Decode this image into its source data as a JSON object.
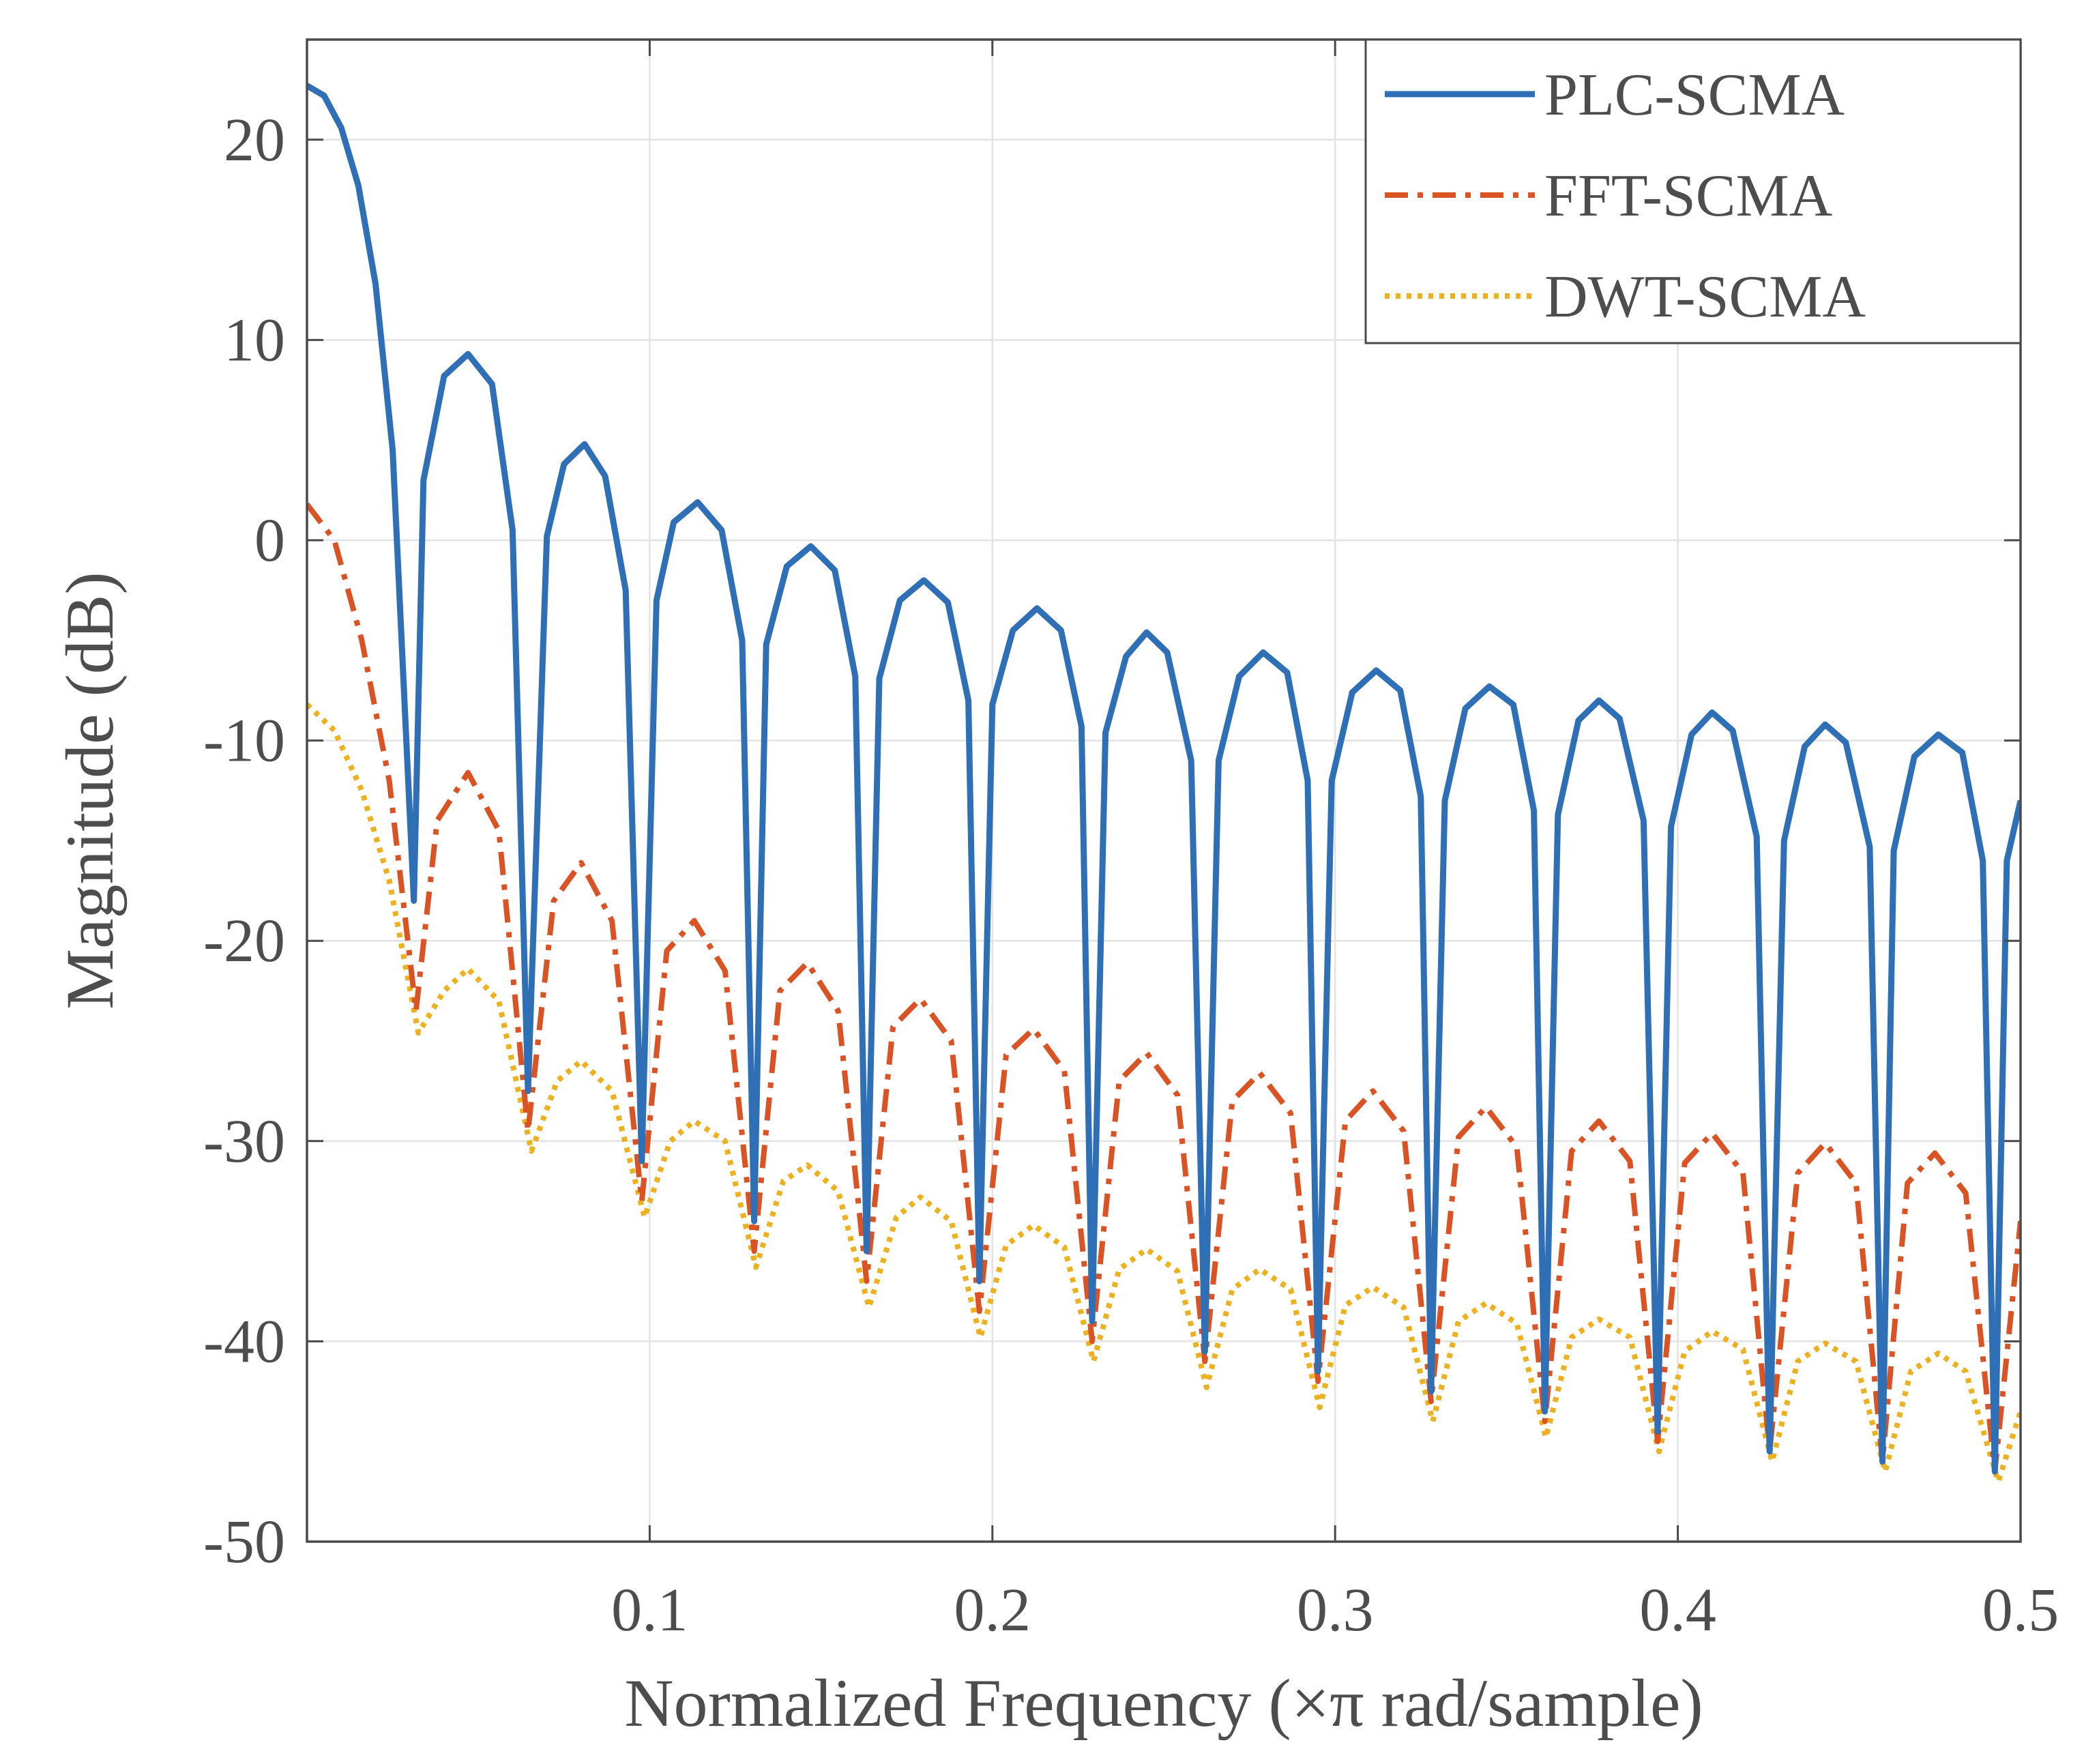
{
  "chart_data": {
    "type": "line",
    "title": "",
    "xlabel": "Normalized Frequency (×π rad/sample)",
    "ylabel": "Magnitude (dB)",
    "xlim": [
      0.0,
      0.5
    ],
    "ylim": [
      -50,
      25
    ],
    "xticks": [
      0.1,
      0.2,
      0.3,
      0.4,
      0.5
    ],
    "xtick_labels": [
      "0.1",
      "0.2",
      "0.3",
      "0.4",
      "0.5"
    ],
    "yticks": [
      -50,
      -40,
      -30,
      -20,
      -10,
      0,
      10,
      20
    ],
    "ytick_labels": [
      "-50",
      "-40",
      "-30",
      "-20",
      "-10",
      "0",
      "10",
      "20"
    ],
    "grid": true,
    "legend_position": "top-right",
    "series": [
      {
        "name": "PLC-SCMA",
        "color": "#2e6fb5",
        "style": "solid",
        "x": [
          0.0,
          0.005,
          0.01,
          0.015,
          0.02,
          0.025,
          0.0312,
          0.034,
          0.04,
          0.047,
          0.054,
          0.06,
          0.0645,
          0.07,
          0.075,
          0.081,
          0.087,
          0.093,
          0.0977,
          0.102,
          0.107,
          0.114,
          0.121,
          0.127,
          0.1305,
          0.134,
          0.14,
          0.147,
          0.154,
          0.16,
          0.1633,
          0.167,
          0.173,
          0.18,
          0.187,
          0.193,
          0.1962,
          0.2,
          0.206,
          0.213,
          0.22,
          0.226,
          0.2291,
          0.233,
          0.239,
          0.245,
          0.251,
          0.258,
          0.262,
          0.266,
          0.272,
          0.279,
          0.286,
          0.292,
          0.295,
          0.299,
          0.305,
          0.312,
          0.319,
          0.325,
          0.328,
          0.332,
          0.338,
          0.345,
          0.352,
          0.358,
          0.3612,
          0.365,
          0.371,
          0.377,
          0.383,
          0.39,
          0.3941,
          0.398,
          0.404,
          0.41,
          0.416,
          0.423,
          0.4268,
          0.431,
          0.437,
          0.443,
          0.449,
          0.456,
          0.4597,
          0.463,
          0.469,
          0.476,
          0.483,
          0.489,
          0.4925,
          0.496,
          0.5
        ],
        "y": [
          22.7,
          22.2,
          20.6,
          17.7,
          12.8,
          4.5,
          -18.0,
          3.0,
          8.2,
          9.3,
          7.8,
          0.5,
          -27.5,
          0.2,
          3.8,
          4.8,
          3.2,
          -2.5,
          -31.0,
          -3.0,
          0.9,
          1.9,
          0.5,
          -5.0,
          -34.0,
          -5.2,
          -1.3,
          -0.3,
          -1.5,
          -6.8,
          -35.5,
          -6.9,
          -3.0,
          -2.0,
          -3.1,
          -8.0,
          -37.0,
          -8.2,
          -4.5,
          -3.4,
          -4.5,
          -9.3,
          -39.0,
          -9.6,
          -5.8,
          -4.6,
          -5.6,
          -11.0,
          -40.5,
          -11.0,
          -6.8,
          -5.6,
          -6.6,
          -12.0,
          -41.5,
          -12.0,
          -7.6,
          -6.5,
          -7.5,
          -12.8,
          -42.5,
          -13.0,
          -8.4,
          -7.3,
          -8.2,
          -13.5,
          -43.5,
          -13.7,
          -9.0,
          -8.0,
          -8.9,
          -14.0,
          -44.5,
          -14.3,
          -9.7,
          -8.6,
          -9.5,
          -14.8,
          -45.5,
          -15.0,
          -10.3,
          -9.2,
          -10.1,
          -15.3,
          -46.0,
          -15.5,
          -10.8,
          -9.7,
          -10.6,
          -16.0,
          -46.5,
          -16.0,
          -13.0
        ]
      },
      {
        "name": "FFT-SCMA",
        "color": "#d95325",
        "style": "dash-dot",
        "x": [
          0.0,
          0.008,
          0.016,
          0.024,
          0.0318,
          0.038,
          0.047,
          0.056,
          0.0645,
          0.072,
          0.08,
          0.089,
          0.0977,
          0.105,
          0.113,
          0.122,
          0.1305,
          0.138,
          0.146,
          0.155,
          0.1633,
          0.171,
          0.179,
          0.188,
          0.1962,
          0.204,
          0.212,
          0.221,
          0.2291,
          0.237,
          0.245,
          0.254,
          0.262,
          0.27,
          0.278,
          0.287,
          0.295,
          0.303,
          0.311,
          0.32,
          0.328,
          0.336,
          0.344,
          0.353,
          0.3612,
          0.369,
          0.377,
          0.386,
          0.3941,
          0.402,
          0.41,
          0.419,
          0.4268,
          0.435,
          0.443,
          0.452,
          0.4597,
          0.467,
          0.475,
          0.484,
          0.4925,
          0.5
        ],
        "y": [
          1.8,
          0.0,
          -5.0,
          -12.0,
          -23.5,
          -14.0,
          -11.6,
          -14.5,
          -29.5,
          -18.0,
          -16.1,
          -19.0,
          -33.0,
          -20.5,
          -19.0,
          -21.5,
          -35.5,
          -22.5,
          -21.1,
          -23.5,
          -37.0,
          -24.3,
          -22.9,
          -25.0,
          -38.5,
          -25.7,
          -24.4,
          -26.5,
          -40.0,
          -27.0,
          -25.6,
          -27.7,
          -41.0,
          -28.0,
          -26.6,
          -28.6,
          -42.0,
          -29.0,
          -27.5,
          -29.5,
          -43.0,
          -29.8,
          -28.3,
          -30.3,
          -44.0,
          -30.5,
          -29.0,
          -31.0,
          -45.0,
          -31.1,
          -29.6,
          -31.6,
          -45.5,
          -31.6,
          -30.1,
          -32.1,
          -46.0,
          -32.1,
          -30.6,
          -32.6,
          -46.5,
          -34.0
        ]
      },
      {
        "name": "DWT-SCMA",
        "color": "#edb120",
        "style": "dotted",
        "x": [
          0.0,
          0.008,
          0.016,
          0.024,
          0.0325,
          0.04,
          0.047,
          0.056,
          0.0655,
          0.073,
          0.08,
          0.089,
          0.0985,
          0.106,
          0.113,
          0.122,
          0.131,
          0.139,
          0.146,
          0.155,
          0.164,
          0.172,
          0.179,
          0.188,
          0.1965,
          0.204,
          0.212,
          0.221,
          0.2295,
          0.237,
          0.245,
          0.254,
          0.2625,
          0.27,
          0.278,
          0.287,
          0.2955,
          0.303,
          0.311,
          0.32,
          0.3285,
          0.336,
          0.344,
          0.353,
          0.3615,
          0.369,
          0.377,
          0.386,
          0.3945,
          0.402,
          0.41,
          0.419,
          0.4275,
          0.435,
          0.443,
          0.452,
          0.4605,
          0.468,
          0.476,
          0.484,
          0.4935,
          0.5
        ],
        "y": [
          -8.2,
          -9.5,
          -12.5,
          -17.0,
          -24.6,
          -22.5,
          -21.4,
          -23.0,
          -30.5,
          -27.0,
          -26.0,
          -27.5,
          -33.8,
          -30.0,
          -29.0,
          -30.0,
          -36.3,
          -32.0,
          -31.2,
          -32.5,
          -38.3,
          -33.8,
          -32.8,
          -34.0,
          -39.8,
          -35.2,
          -34.2,
          -35.3,
          -41.0,
          -36.4,
          -35.4,
          -36.5,
          -42.3,
          -37.4,
          -36.4,
          -37.4,
          -43.3,
          -38.2,
          -37.3,
          -38.3,
          -44.0,
          -39.0,
          -38.1,
          -39.1,
          -44.8,
          -39.8,
          -38.9,
          -39.8,
          -45.5,
          -40.5,
          -39.5,
          -40.4,
          -46.0,
          -41.0,
          -40.1,
          -41.0,
          -46.5,
          -41.5,
          -40.6,
          -41.5,
          -47.0,
          -43.5
        ]
      }
    ]
  }
}
